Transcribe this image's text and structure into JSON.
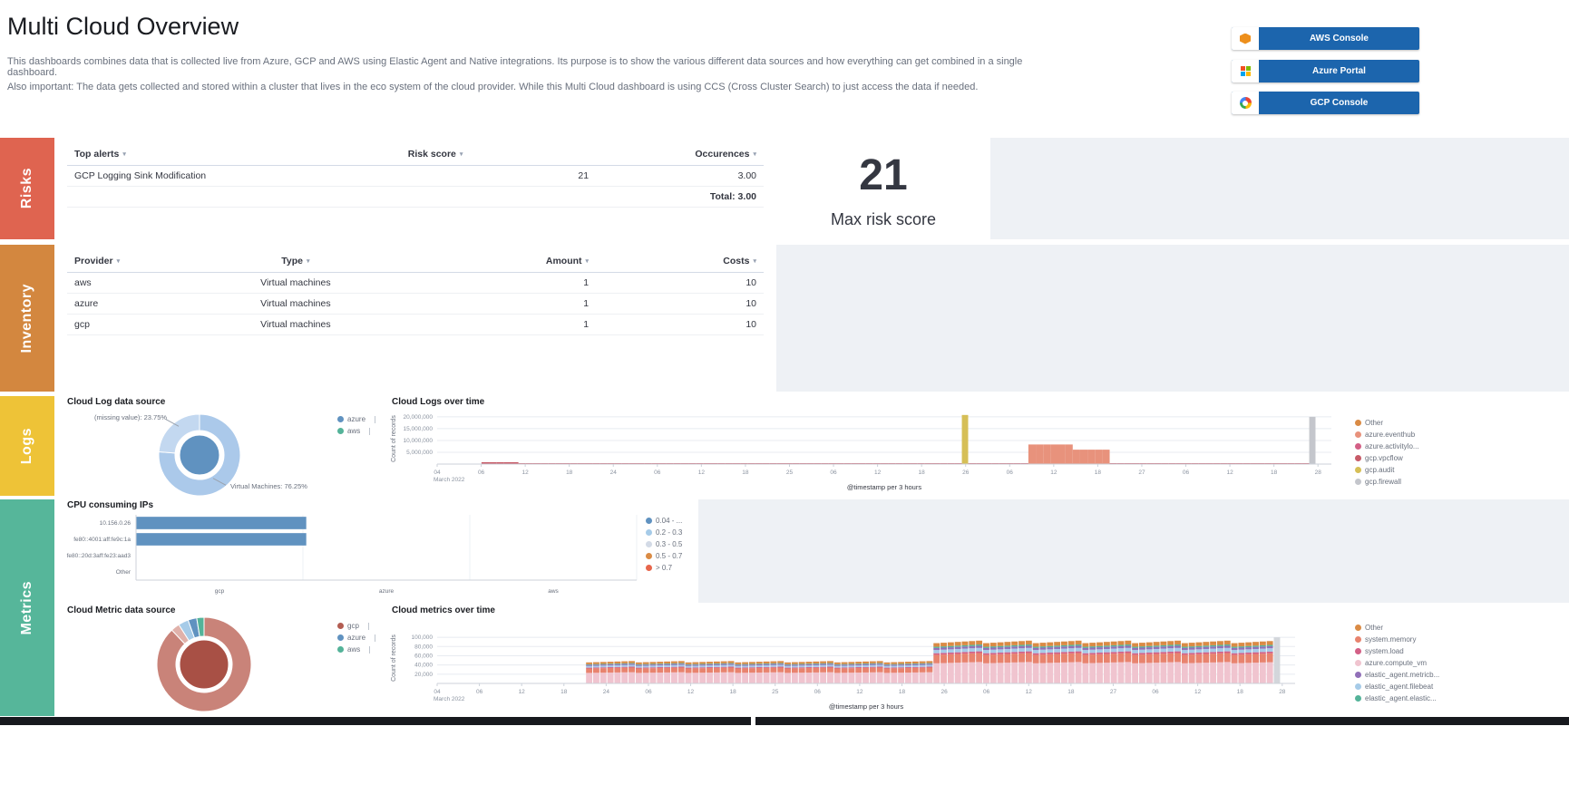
{
  "header": {
    "title": "Multi Cloud Overview",
    "description_line1": "This dashboards combines data that is collected live from Azure, GCP and AWS using Elastic Agent and Native integrations. Its purpose is to show the various different data sources and how everything can get combined in a single dashboard.",
    "description_line2": "Also important: The data gets collected and stored within a cluster that lives in the eco system of the cloud provider. While this Multi Cloud dashboard is using CCS (Cross Cluster Search) to just access the data if needed.",
    "console_buttons": [
      {
        "label": "AWS Console",
        "icon": "aws-icon"
      },
      {
        "label": "Azure Portal",
        "icon": "azure-icon"
      },
      {
        "label": "GCP Console",
        "icon": "gcp-icon"
      }
    ]
  },
  "section_labels": {
    "risks": "Risks",
    "inventory": "Inventory",
    "logs": "Logs",
    "metrics": "Metrics"
  },
  "section_colors": {
    "risks": "#df6450",
    "inventory": "#d3873f",
    "logs": "#eec337",
    "metrics": "#56b69a"
  },
  "risks": {
    "alerts_table": {
      "columns": [
        "Top alerts",
        "Risk score",
        "Occurences"
      ],
      "rows": [
        [
          "GCP Logging Sink Modification",
          "21",
          "3.00"
        ]
      ],
      "total": "Total: 3.00"
    },
    "max_risk_score": {
      "value": "21",
      "label": "Max risk score"
    }
  },
  "inventory": {
    "table": {
      "columns": [
        "Provider",
        "Type",
        "Amount",
        "Costs"
      ],
      "rows": [
        [
          "aws",
          "Virtual machines",
          "1",
          "10"
        ],
        [
          "azure",
          "Virtual machines",
          "1",
          "10"
        ],
        [
          "gcp",
          "Virtual machines",
          "1",
          "10"
        ]
      ]
    }
  },
  "chart_data": [
    {
      "id": "cloud-log-data-source",
      "type": "pie",
      "title": "Cloud Log data source",
      "legend": [
        {
          "label": "azure",
          "color": "#6092c0"
        },
        {
          "label": "aws",
          "color": "#54b399"
        }
      ],
      "slices": [
        {
          "label": "Virtual Machines",
          "pct": 76.25,
          "color": "#abc9ea"
        },
        {
          "label": "(missing value)",
          "pct": 23.75,
          "color": "#c3d8f0"
        }
      ],
      "inner": {
        "color": "#6092c0"
      },
      "callouts": [
        "(missing value): 23.75%",
        "Virtual Machines: 76.25%"
      ]
    },
    {
      "id": "cloud-logs-over-time",
      "type": "bar",
      "title": "Cloud Logs over time",
      "ylabel": "Count of records",
      "xlabel": "@timestamp per 3 hours",
      "x_sub_label": "March 2022",
      "ymax": 21500000,
      "yticks": [
        {
          "v": 20000000,
          "label": "20,000,000"
        },
        {
          "v": 15000000,
          "label": "15,000,000"
        },
        {
          "v": 10000000,
          "label": "10,000,000"
        },
        {
          "v": 5000000,
          "label": "5,000,000"
        }
      ],
      "xticks": [
        "04",
        "06",
        "12",
        "18",
        "24",
        "06",
        "12",
        "18",
        "25",
        "06",
        "12",
        "18",
        "26",
        "06",
        "12",
        "18",
        "27",
        "06",
        "12",
        "18",
        "28"
      ],
      "buckets": 121,
      "legend": [
        {
          "label": "Other",
          "color": "#da8b45"
        },
        {
          "label": "azure.eventhub",
          "color": "#e8927c"
        },
        {
          "label": "azure.activitylo...",
          "color": "#d36086"
        },
        {
          "label": "gcp.vpcflow",
          "color": "#c75b68"
        },
        {
          "label": "gcp.audit",
          "color": "#d6bf57"
        },
        {
          "label": "gcp.firewall",
          "color": "#c4c6cc"
        }
      ],
      "bars": [
        {
          "from": 6,
          "to": 10,
          "v": 800000,
          "series": "gcp.vpcflow"
        },
        {
          "from": 11,
          "to": 117,
          "v": 230000,
          "series": "gcp.vpcflow"
        },
        {
          "t": 71,
          "v": 20800000,
          "series": "gcp.audit"
        },
        {
          "from": 80,
          "to": 85,
          "v": 8300000,
          "series": "azure.eventhub"
        },
        {
          "from": 86,
          "to": 90,
          "v": 6100000,
          "series": "azure.eventhub"
        },
        {
          "t": 118,
          "v": 20000000,
          "series": "gcp.firewall"
        }
      ]
    },
    {
      "id": "cpu-consuming-ips",
      "type": "bar_horizontal",
      "title": "CPU consuming IPs",
      "categories": [
        "10.156.0.26",
        "fe80::4001:aff:fe9c:1a",
        "fe80::20d:3aff:fe23:aad3",
        "Other"
      ],
      "values": [
        0.34,
        0.34,
        0,
        0
      ],
      "x_group_labels": [
        "gcp",
        "azure",
        "aws"
      ],
      "bar_color": "#6092c0",
      "legend": [
        {
          "label": "0.04 - ...",
          "color": "#6092c0"
        },
        {
          "label": "0.2 - 0.3",
          "color": "#a6cbe8"
        },
        {
          "label": "0.3 - 0.5",
          "color": "#d3dae6"
        },
        {
          "label": "0.5 - 0.7",
          "color": "#da8b45"
        },
        {
          "label": "> 0.7",
          "color": "#e7664c"
        }
      ]
    },
    {
      "id": "cloud-metric-data-source",
      "type": "pie",
      "title": "Cloud Metric data source",
      "legend": [
        {
          "label": "gcp",
          "color": "#b35d52"
        },
        {
          "label": "azure",
          "color": "#6092c0"
        },
        {
          "label": "aws",
          "color": "#54b399"
        }
      ],
      "slices": [
        {
          "label": "gcp",
          "pct": 88,
          "color": "#c98379"
        },
        {
          "pct": 3,
          "color": "#e0b1aa"
        },
        {
          "label": "azure",
          "pct": 3.5,
          "color": "#a6cbe8"
        },
        {
          "pct": 3,
          "color": "#6092c0"
        },
        {
          "label": "aws",
          "pct": 2.5,
          "color": "#54b399"
        }
      ],
      "inner": {
        "color": "#a85045"
      },
      "callouts": []
    },
    {
      "id": "cloud-metrics-over-time",
      "type": "stacked_bar",
      "title": "Cloud metrics over time",
      "ylabel": "Count of records",
      "xlabel": "@timestamp per 3 hours",
      "x_sub_label": "March 2022",
      "ymax": 110000,
      "yticks": [
        {
          "v": 100000,
          "label": "100,000"
        },
        {
          "v": 80000,
          "label": "80,000"
        },
        {
          "v": 60000,
          "label": "60,000"
        },
        {
          "v": 40000,
          "label": "40,000"
        },
        {
          "v": 20000,
          "label": "20,000"
        }
      ],
      "xticks": [
        "04",
        "06",
        "12",
        "18",
        "24",
        "06",
        "12",
        "18",
        "25",
        "06",
        "12",
        "18",
        "26",
        "06",
        "12",
        "18",
        "27",
        "06",
        "12",
        "18",
        "28"
      ],
      "buckets": 121,
      "legend": [
        {
          "label": "Other",
          "color": "#da8b45"
        },
        {
          "label": "system.memory",
          "color": "#e8836e"
        },
        {
          "label": "system.load",
          "color": "#d36086"
        },
        {
          "label": "azure.compute_vm",
          "color": "#f0c4cf"
        },
        {
          "label": "elastic_agent.metricb...",
          "color": "#9170b8"
        },
        {
          "label": "elastic_agent.filebeat",
          "color": "#a6cbe8"
        },
        {
          "label": "elastic_agent.elastic...",
          "color": "#54b399"
        }
      ],
      "stack_order": [
        "azure.compute_vm",
        "system.memory",
        "system.load",
        "elastic_agent.filebeat",
        "elastic_agent.metricb...",
        "elastic_agent.elastic...",
        "Other"
      ],
      "stack_fractions": {
        "azure.compute_vm": 0.5,
        "system.memory": 0.21,
        "system.load": 0.04,
        "elastic_agent.filebeat": 0.08,
        "elastic_agent.metricb...": 0.05,
        "elastic_agent.elastic...": 0.03,
        "Other": 0.09
      },
      "runs": [
        {
          "from": 21,
          "to": 69,
          "total": 47000
        },
        {
          "from": 70,
          "to": 117,
          "total": 90000
        }
      ],
      "end_bar": {
        "t": 118,
        "total": 100000,
        "color": "#d3d6db"
      }
    }
  ]
}
